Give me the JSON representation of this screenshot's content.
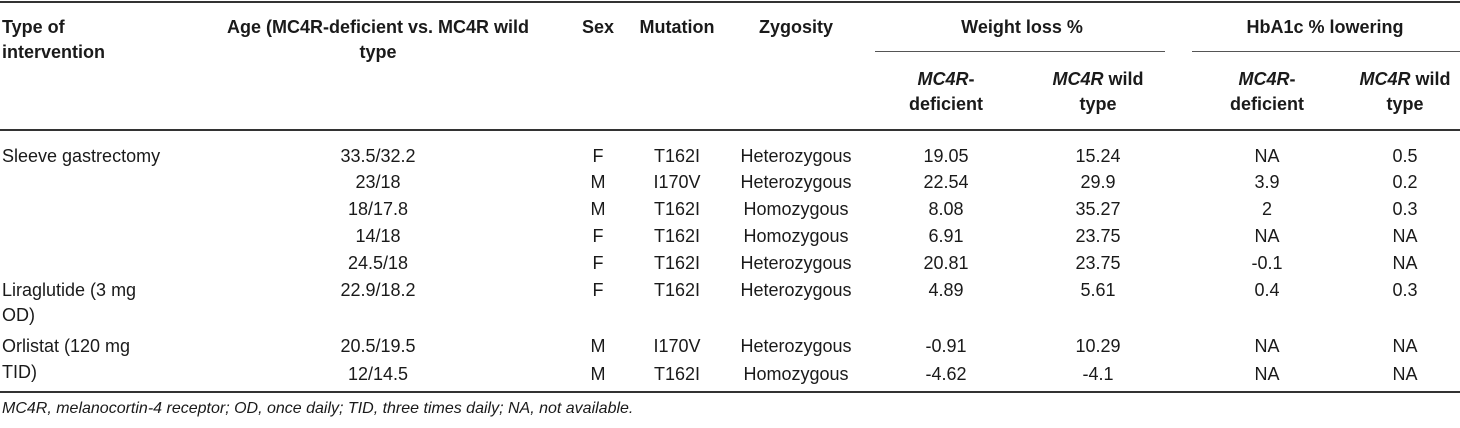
{
  "table": {
    "headers": {
      "type": [
        "Type of",
        "intervention"
      ],
      "age": [
        "Age (MC4R-deficient vs. MC4R wild",
        "type"
      ],
      "sex": "Sex",
      "mutation": "Mutation",
      "zygosity": "Zygosity",
      "weight_loss": "Weight loss %",
      "hba1c": "HbA1c % lowering",
      "sub": {
        "deficient": [
          "MC4R",
          "-",
          "deficient"
        ],
        "wild": [
          "MC4R",
          " wild",
          "type"
        ]
      }
    },
    "rows": [
      {
        "intervention": [
          "Sleeve gastrectomy"
        ],
        "age": "33.5/32.2",
        "sex": "F",
        "mutation": "T162I",
        "zygosity": "Heterozygous",
        "wl_def": "19.05",
        "wl_wt": "15.24",
        "hb_def": "NA",
        "hb_wt": "0.5"
      },
      {
        "intervention": [],
        "age": "23/18",
        "sex": "M",
        "mutation": "I170V",
        "zygosity": "Heterozygous",
        "wl_def": "22.54",
        "wl_wt": "29.9",
        "hb_def": "3.9",
        "hb_wt": "0.2"
      },
      {
        "intervention": [],
        "age": "18/17.8",
        "sex": "M",
        "mutation": "T162I",
        "zygosity": "Homozygous",
        "wl_def": "8.08",
        "wl_wt": "35.27",
        "hb_def": "2",
        "hb_wt": "0.3"
      },
      {
        "intervention": [],
        "age": "14/18",
        "sex": "F",
        "mutation": "T162I",
        "zygosity": "Homozygous",
        "wl_def": "6.91",
        "wl_wt": "23.75",
        "hb_def": "NA",
        "hb_wt": "NA"
      },
      {
        "intervention": [],
        "age": "24.5/18",
        "sex": "F",
        "mutation": "T162I",
        "zygosity": "Heterozygous",
        "wl_def": "20.81",
        "wl_wt": "23.75",
        "hb_def": "-0.1",
        "hb_wt": "NA"
      },
      {
        "intervention": [
          "Liraglutide (3 mg",
          "OD)"
        ],
        "age": "22.9/18.2",
        "sex": "F",
        "mutation": "T162I",
        "zygosity": "Heterozygous",
        "wl_def": "4.89",
        "wl_wt": "5.61",
        "hb_def": "0.4",
        "hb_wt": "0.3"
      },
      {
        "intervention": [
          "Orlistat (120 mg",
          "TID)"
        ],
        "age": "20.5/19.5",
        "sex": "M",
        "mutation": "I170V",
        "zygosity": "Heterozygous",
        "wl_def": "-0.91",
        "wl_wt": "10.29",
        "hb_def": "NA",
        "hb_wt": "NA"
      },
      {
        "intervention": [],
        "age": "12/14.5",
        "sex": "M",
        "mutation": "T162I",
        "zygosity": "Homozygous",
        "wl_def": "-4.62",
        "wl_wt": "-4.1",
        "hb_def": "NA",
        "hb_wt": "NA"
      }
    ]
  },
  "footnote": "MC4R, melanocortin-4 receptor; OD, once daily; TID, three times daily; NA, not available."
}
